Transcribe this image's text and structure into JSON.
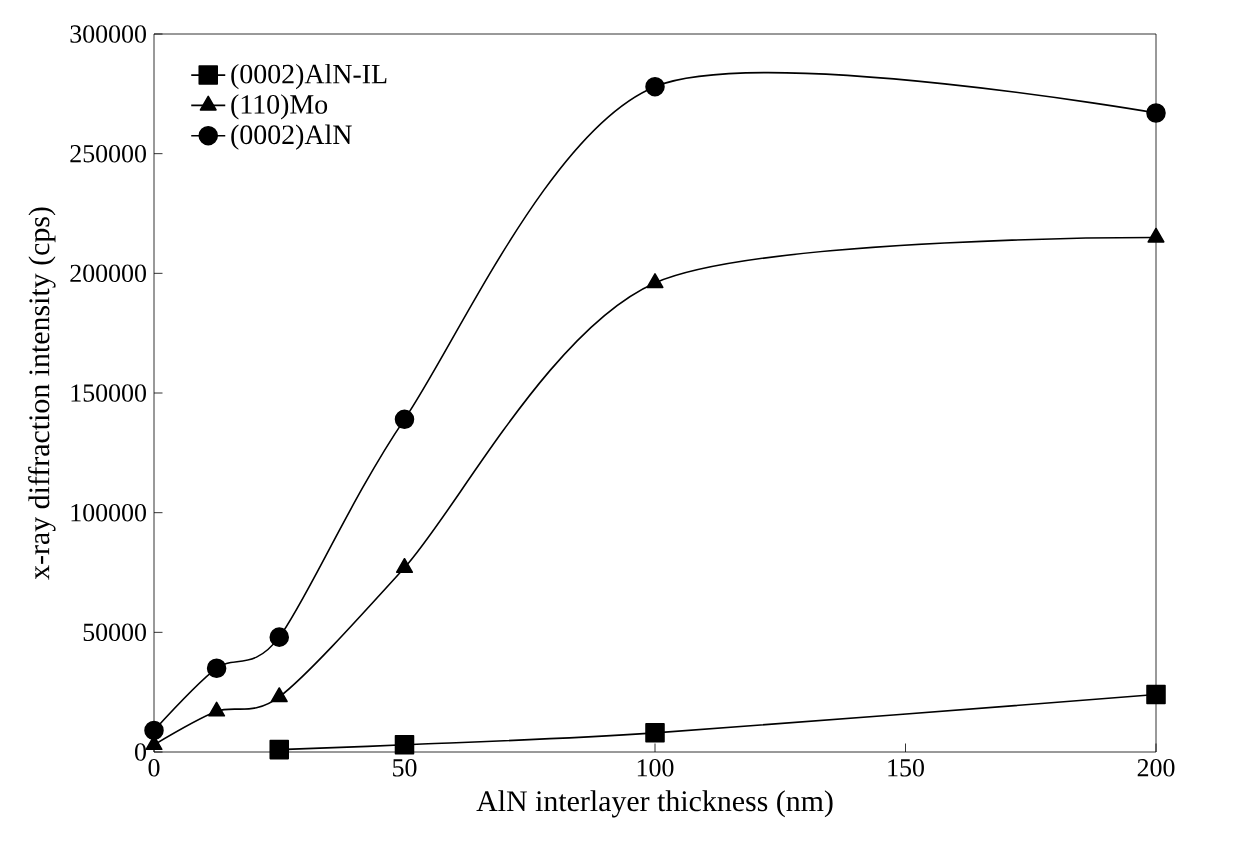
{
  "chart_data": {
    "type": "line",
    "xlabel": "AlN interlayer thickness (nm)",
    "ylabel": "x-ray diffraction intensity (cps)",
    "xlim": [
      0,
      200
    ],
    "ylim": [
      0,
      300000
    ],
    "xticks": [
      0,
      50,
      100,
      150,
      200
    ],
    "yticks": [
      0,
      50000,
      100000,
      150000,
      200000,
      250000,
      300000
    ],
    "legend": "top left",
    "grid": false,
    "line_style": "solid",
    "series": [
      {
        "name": "(0002)AlN-IL",
        "color": "#000000",
        "marker": "square",
        "x": [
          25,
          50,
          100,
          200
        ],
        "values": [
          1000,
          3000,
          8000,
          24000
        ]
      },
      {
        "name": "(110)Mo",
        "color": "#000000",
        "marker": "triangle",
        "x": [
          0,
          12.5,
          25,
          50,
          100,
          200
        ],
        "values": [
          3000,
          17000,
          23000,
          77000,
          196000,
          215000
        ]
      },
      {
        "name": "(0002)AlN",
        "color": "#000000",
        "marker": "circle",
        "x": [
          0,
          12.5,
          25,
          50,
          100,
          200
        ],
        "values": [
          9000,
          35000,
          48000,
          139000,
          278000,
          267000
        ]
      }
    ]
  }
}
